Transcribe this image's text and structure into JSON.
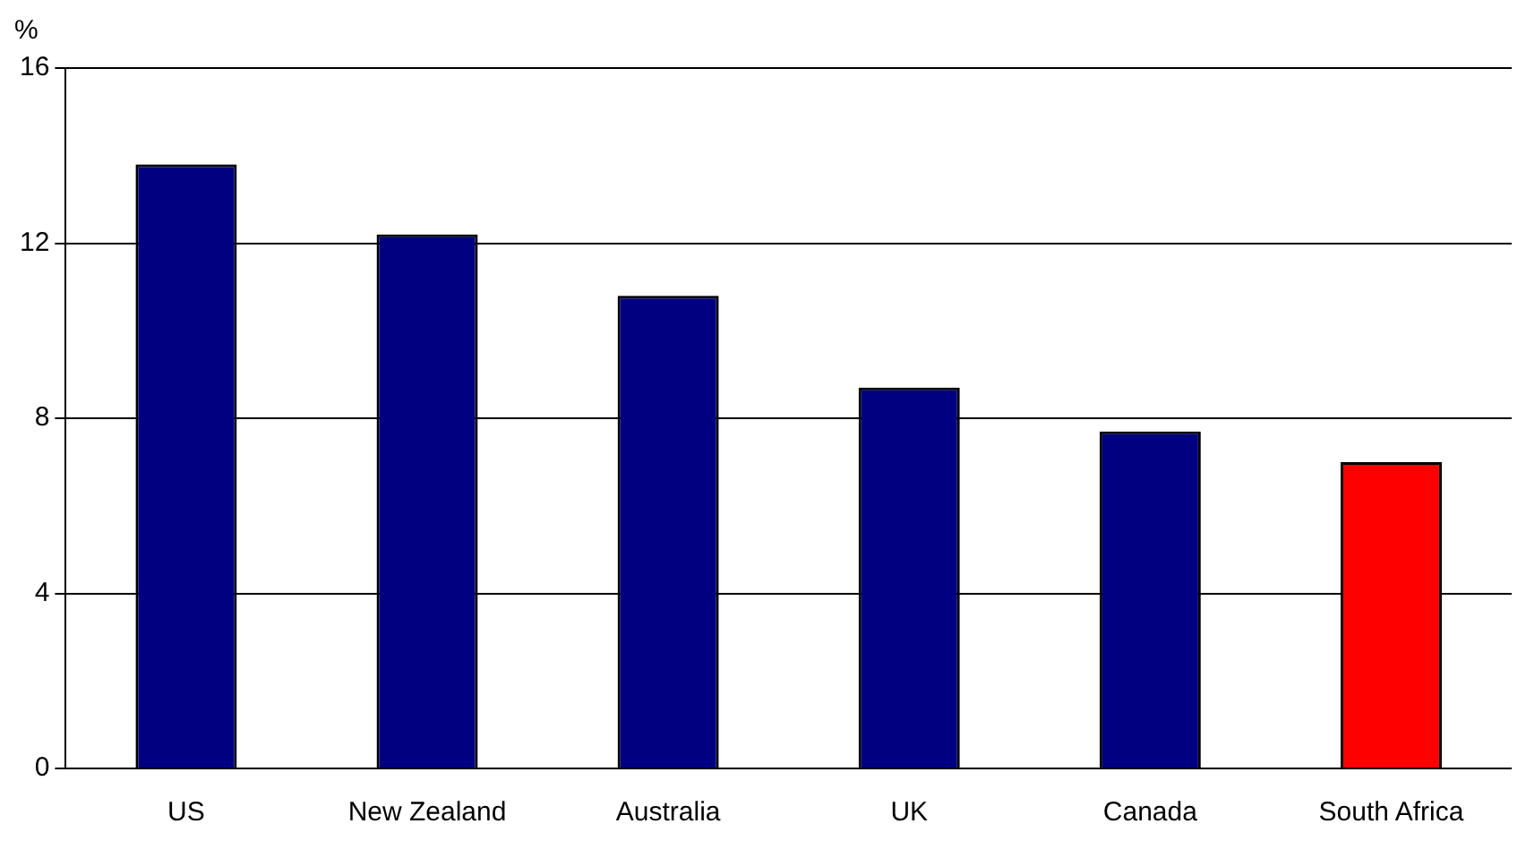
{
  "chart_data": {
    "type": "bar",
    "ylabel": "%",
    "categories": [
      "US",
      "New Zealand",
      "Australia",
      "UK",
      "Canada",
      "South Africa"
    ],
    "values": [
      13.8,
      12.2,
      10.8,
      8.7,
      7.7,
      7.0
    ],
    "colors": [
      "#000080",
      "#000080",
      "#000080",
      "#000080",
      "#000080",
      "#ff0000"
    ],
    "ylim": [
      0,
      16
    ],
    "yticks": [
      0,
      4,
      8,
      12,
      16
    ],
    "grid": "y",
    "legend": false
  }
}
